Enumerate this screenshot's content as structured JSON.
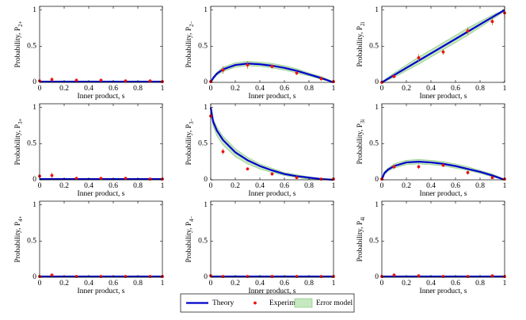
{
  "legend": [
    {
      "name": "Theory",
      "color": "#0000cc"
    },
    {
      "name": "Experiment",
      "color": "#ee1111"
    },
    {
      "name": "Error model",
      "color": "#c6e8c0"
    }
  ],
  "chart_data": [
    {
      "type": "line",
      "ylabel": {
        "text": "Probability, P",
        "sub": "2+"
      },
      "xlabel": "Inner product, s",
      "xlim": [
        0,
        1
      ],
      "ylim": [
        0,
        1.05
      ],
      "xticks": [
        0,
        0.2,
        0.4,
        0.6,
        0.8,
        1
      ],
      "yticks": [
        0,
        0.5,
        1
      ],
      "theory_x": [
        0,
        0.02,
        0.05,
        0.1,
        0.2,
        0.3,
        0.4,
        0.5,
        0.6,
        0.7,
        0.8,
        0.9,
        1
      ],
      "theory": [
        0.01,
        0.01,
        0.01,
        0.01,
        0.01,
        0.01,
        0.01,
        0.01,
        0.01,
        0.01,
        0.01,
        0.01,
        0.01
      ],
      "band_lower": [
        0,
        0,
        0,
        0,
        0,
        0,
        0,
        0,
        0,
        0,
        0,
        0,
        0
      ],
      "band_upper": [
        0.02,
        0.02,
        0.02,
        0.02,
        0.02,
        0.02,
        0.02,
        0.02,
        0.02,
        0.02,
        0.02,
        0.02,
        0.02
      ],
      "exp_x": [
        0,
        0.1,
        0.3,
        0.5,
        0.7,
        0.9,
        1
      ],
      "exp": [
        0.02,
        0.04,
        0.03,
        0.03,
        0.02,
        0.02,
        0.01
      ],
      "exp_err": [
        0.01,
        0.03,
        0.01,
        0.01,
        0.01,
        0.01,
        0.01
      ]
    },
    {
      "type": "line",
      "ylabel": {
        "text": "Probability, P",
        "sub": "2−"
      },
      "xlabel": "Inner product, s",
      "xlim": [
        0,
        1
      ],
      "ylim": [
        0,
        1.05
      ],
      "xticks": [
        0,
        0.2,
        0.4,
        0.6,
        0.8,
        1
      ],
      "yticks": [
        0,
        0.5,
        1
      ],
      "theory_x": [
        0,
        0.02,
        0.05,
        0.1,
        0.2,
        0.3,
        0.4,
        0.5,
        0.6,
        0.7,
        0.8,
        0.9,
        1
      ],
      "theory": [
        0,
        0.06,
        0.12,
        0.18,
        0.24,
        0.26,
        0.25,
        0.23,
        0.2,
        0.16,
        0.11,
        0.06,
        0
      ],
      "band_lower": [
        0,
        0.04,
        0.1,
        0.15,
        0.21,
        0.23,
        0.22,
        0.2,
        0.17,
        0.13,
        0.09,
        0.04,
        0
      ],
      "band_upper": [
        0.01,
        0.08,
        0.14,
        0.21,
        0.27,
        0.29,
        0.28,
        0.26,
        0.23,
        0.19,
        0.13,
        0.08,
        0.01
      ],
      "exp_x": [
        0,
        0.1,
        0.3,
        0.5,
        0.7,
        0.9,
        1
      ],
      "exp": [
        0.01,
        0.17,
        0.24,
        0.22,
        0.13,
        0.05,
        0.01
      ],
      "exp_err": [
        0.01,
        0.05,
        0.05,
        0.03,
        0.03,
        0.03,
        0.01
      ]
    },
    {
      "type": "line",
      "ylabel": {
        "text": "Probability, P",
        "sub": "2i"
      },
      "xlabel": "Inner product, s",
      "xlim": [
        0,
        1
      ],
      "ylim": [
        0,
        1.05
      ],
      "xticks": [
        0,
        0.2,
        0.4,
        0.6,
        0.8,
        1
      ],
      "yticks": [
        0,
        0.5,
        1
      ],
      "theory_x": [
        0,
        0.02,
        0.05,
        0.1,
        0.2,
        0.3,
        0.4,
        0.5,
        0.6,
        0.7,
        0.8,
        0.9,
        1
      ],
      "theory": [
        0,
        0.02,
        0.05,
        0.1,
        0.2,
        0.3,
        0.4,
        0.5,
        0.6,
        0.7,
        0.8,
        0.9,
        1
      ],
      "band_lower": [
        0,
        0.01,
        0.03,
        0.07,
        0.16,
        0.25,
        0.35,
        0.45,
        0.55,
        0.65,
        0.76,
        0.87,
        0.98
      ],
      "band_upper": [
        0.01,
        0.03,
        0.07,
        0.13,
        0.24,
        0.35,
        0.45,
        0.55,
        0.65,
        0.75,
        0.84,
        0.93,
        1
      ],
      "exp_x": [
        0,
        0.1,
        0.3,
        0.5,
        0.7,
        0.9,
        1
      ],
      "exp": [
        0,
        0.08,
        0.34,
        0.42,
        0.71,
        0.84,
        0.96
      ],
      "exp_err": [
        0.01,
        0.02,
        0.05,
        0.04,
        0.05,
        0.05,
        0.08
      ]
    },
    {
      "type": "line",
      "ylabel": {
        "text": "Probability, P",
        "sub": "3+"
      },
      "xlabel": "Inner product, s",
      "xlim": [
        0,
        1
      ],
      "ylim": [
        0,
        1.05
      ],
      "xticks": [
        0,
        0.2,
        0.4,
        0.6,
        0.8,
        1
      ],
      "yticks": [
        0,
        0.5,
        1
      ],
      "theory_x": [
        0,
        0.02,
        0.05,
        0.1,
        0.2,
        0.3,
        0.4,
        0.5,
        0.6,
        0.7,
        0.8,
        0.9,
        1
      ],
      "theory": [
        0.01,
        0.01,
        0.01,
        0.01,
        0.01,
        0.01,
        0.01,
        0.01,
        0.01,
        0.01,
        0.01,
        0.01,
        0.01
      ],
      "band_lower": [
        0,
        0,
        0,
        0,
        0,
        0,
        0,
        0,
        0,
        0,
        0,
        0,
        0
      ],
      "band_upper": [
        0.02,
        0.02,
        0.02,
        0.02,
        0.02,
        0.02,
        0.02,
        0.02,
        0.02,
        0.02,
        0.02,
        0.02,
        0.02
      ],
      "exp_x": [
        0,
        0.1,
        0.3,
        0.5,
        0.7,
        0.9,
        1
      ],
      "exp": [
        0.05,
        0.06,
        0.02,
        0.02,
        0.02,
        0.01,
        0.01
      ],
      "exp_err": [
        0.03,
        0.04,
        0.01,
        0.01,
        0.01,
        0.01,
        0.01
      ]
    },
    {
      "type": "line",
      "ylabel": {
        "text": "Probability, P",
        "sub": "3−"
      },
      "xlabel": "Inner product, s",
      "xlim": [
        0,
        1
      ],
      "ylim": [
        0,
        1.05
      ],
      "xticks": [
        0,
        0.2,
        0.4,
        0.6,
        0.8,
        1
      ],
      "yticks": [
        0,
        0.5,
        1
      ],
      "theory_x": [
        0,
        0.02,
        0.05,
        0.1,
        0.2,
        0.3,
        0.4,
        0.5,
        0.6,
        0.7,
        0.8,
        0.9,
        1
      ],
      "theory": [
        1,
        0.8,
        0.68,
        0.55,
        0.38,
        0.27,
        0.19,
        0.13,
        0.08,
        0.05,
        0.03,
        0.01,
        0
      ],
      "band_lower": [
        0.97,
        0.74,
        0.61,
        0.48,
        0.32,
        0.22,
        0.15,
        0.1,
        0.06,
        0.03,
        0.01,
        0,
        0
      ],
      "band_upper": [
        1,
        0.84,
        0.73,
        0.6,
        0.43,
        0.31,
        0.22,
        0.16,
        0.1,
        0.07,
        0.04,
        0.02,
        0.01
      ],
      "exp_x": [
        0,
        0.1,
        0.3,
        0.5,
        0.7,
        0.9,
        1
      ],
      "exp": [
        0.88,
        0.39,
        0.15,
        0.08,
        0.03,
        0.01,
        0.01
      ],
      "exp_err": [
        0.05,
        0.04,
        0.02,
        0.01,
        0.01,
        0.01,
        0.01
      ]
    },
    {
      "type": "line",
      "ylabel": {
        "text": "Probability, P",
        "sub": "3i"
      },
      "xlabel": "Inner product, s",
      "xlim": [
        0,
        1
      ],
      "ylim": [
        0,
        1.05
      ],
      "xticks": [
        0,
        0.2,
        0.4,
        0.6,
        0.8,
        1
      ],
      "yticks": [
        0,
        0.5,
        1
      ],
      "theory_x": [
        0,
        0.02,
        0.05,
        0.1,
        0.2,
        0.3,
        0.4,
        0.5,
        0.6,
        0.7,
        0.8,
        0.9,
        1
      ],
      "theory": [
        0,
        0.09,
        0.14,
        0.19,
        0.24,
        0.25,
        0.24,
        0.22,
        0.19,
        0.15,
        0.11,
        0.06,
        0
      ],
      "band_lower": [
        0,
        0.07,
        0.12,
        0.16,
        0.21,
        0.22,
        0.21,
        0.19,
        0.16,
        0.13,
        0.09,
        0.04,
        0
      ],
      "band_upper": [
        0.01,
        0.11,
        0.16,
        0.22,
        0.27,
        0.28,
        0.27,
        0.25,
        0.22,
        0.18,
        0.13,
        0.08,
        0.01
      ],
      "exp_x": [
        0,
        0.1,
        0.3,
        0.5,
        0.7,
        0.9,
        1
      ],
      "exp": [
        0.01,
        0.18,
        0.18,
        0.2,
        0.1,
        0.03,
        0.01
      ],
      "exp_err": [
        0.01,
        0.03,
        0.03,
        0.02,
        0.03,
        0.01,
        0.01
      ]
    },
    {
      "type": "line",
      "ylabel": {
        "text": "Probability, P",
        "sub": "4+"
      },
      "xlabel": "Inner product, s",
      "xlim": [
        0,
        1
      ],
      "ylim": [
        0,
        1.05
      ],
      "xticks": [
        0,
        0.2,
        0.4,
        0.6,
        0.8,
        1
      ],
      "yticks": [
        0,
        0.5,
        1
      ],
      "theory_x": [
        0,
        0.02,
        0.05,
        0.1,
        0.2,
        0.3,
        0.4,
        0.5,
        0.6,
        0.7,
        0.8,
        0.9,
        1
      ],
      "theory": [
        0.01,
        0.01,
        0.01,
        0.01,
        0.01,
        0.01,
        0.01,
        0.01,
        0.01,
        0.01,
        0.01,
        0.01,
        0.01
      ],
      "band_lower": [
        0,
        0,
        0,
        0,
        0,
        0,
        0,
        0,
        0,
        0,
        0,
        0,
        0
      ],
      "band_upper": [
        0.02,
        0.02,
        0.02,
        0.02,
        0.02,
        0.02,
        0.02,
        0.02,
        0.02,
        0.02,
        0.02,
        0.02,
        0.02
      ],
      "exp_x": [
        0,
        0.1,
        0.3,
        0.5,
        0.7,
        0.9,
        1
      ],
      "exp": [
        0.01,
        0.03,
        0.01,
        0.01,
        0.01,
        0.01,
        0.01
      ],
      "exp_err": [
        0.01,
        0.02,
        0.01,
        0.01,
        0.01,
        0.01,
        0.01
      ]
    },
    {
      "type": "line",
      "ylabel": {
        "text": "Probability, P",
        "sub": "4−"
      },
      "xlabel": "Inner product, s",
      "xlim": [
        0,
        1
      ],
      "ylim": [
        0,
        1.05
      ],
      "xticks": [
        0,
        0.2,
        0.4,
        0.6,
        0.8,
        1
      ],
      "yticks": [
        0,
        0.5,
        1
      ],
      "theory_x": [
        0,
        0.02,
        0.05,
        0.1,
        0.2,
        0.3,
        0.4,
        0.5,
        0.6,
        0.7,
        0.8,
        0.9,
        1
      ],
      "theory": [
        0.01,
        0.01,
        0.01,
        0.01,
        0.01,
        0.01,
        0.01,
        0.01,
        0.01,
        0.01,
        0.01,
        0.01,
        0.01
      ],
      "band_lower": [
        0,
        0,
        0,
        0,
        0,
        0,
        0,
        0,
        0,
        0,
        0,
        0,
        0
      ],
      "band_upper": [
        0.02,
        0.02,
        0.02,
        0.02,
        0.02,
        0.02,
        0.02,
        0.02,
        0.02,
        0.02,
        0.02,
        0.02,
        0.02
      ],
      "exp_x": [
        0,
        0.1,
        0.3,
        0.5,
        0.7,
        0.9,
        1
      ],
      "exp": [
        0.02,
        0.01,
        0.01,
        0.01,
        0.01,
        0.01,
        0.01
      ],
      "exp_err": [
        0.01,
        0.01,
        0.01,
        0.01,
        0.01,
        0.01,
        0.01
      ]
    },
    {
      "type": "line",
      "ylabel": {
        "text": "Probability, P",
        "sub": "4i"
      },
      "xlabel": "Inner product, s",
      "xlim": [
        0,
        1
      ],
      "ylim": [
        0,
        1.05
      ],
      "xticks": [
        0,
        0.2,
        0.4,
        0.6,
        0.8,
        1
      ],
      "yticks": [
        0,
        0.5,
        1
      ],
      "theory_x": [
        0,
        0.02,
        0.05,
        0.1,
        0.2,
        0.3,
        0.4,
        0.5,
        0.6,
        0.7,
        0.8,
        0.9,
        1
      ],
      "theory": [
        0.01,
        0.01,
        0.01,
        0.01,
        0.01,
        0.01,
        0.01,
        0.01,
        0.01,
        0.01,
        0.01,
        0.01,
        0.01
      ],
      "band_lower": [
        0,
        0,
        0,
        0,
        0,
        0,
        0,
        0,
        0,
        0,
        0,
        0,
        0
      ],
      "band_upper": [
        0.02,
        0.02,
        0.02,
        0.02,
        0.02,
        0.02,
        0.02,
        0.02,
        0.02,
        0.02,
        0.02,
        0.02,
        0.02
      ],
      "exp_x": [
        0,
        0.1,
        0.3,
        0.5,
        0.7,
        0.9,
        1
      ],
      "exp": [
        0.01,
        0.03,
        0.02,
        0.01,
        0.01,
        0.02,
        0.01
      ],
      "exp_err": [
        0.01,
        0.02,
        0.01,
        0.01,
        0.01,
        0.01,
        0.01
      ]
    }
  ]
}
